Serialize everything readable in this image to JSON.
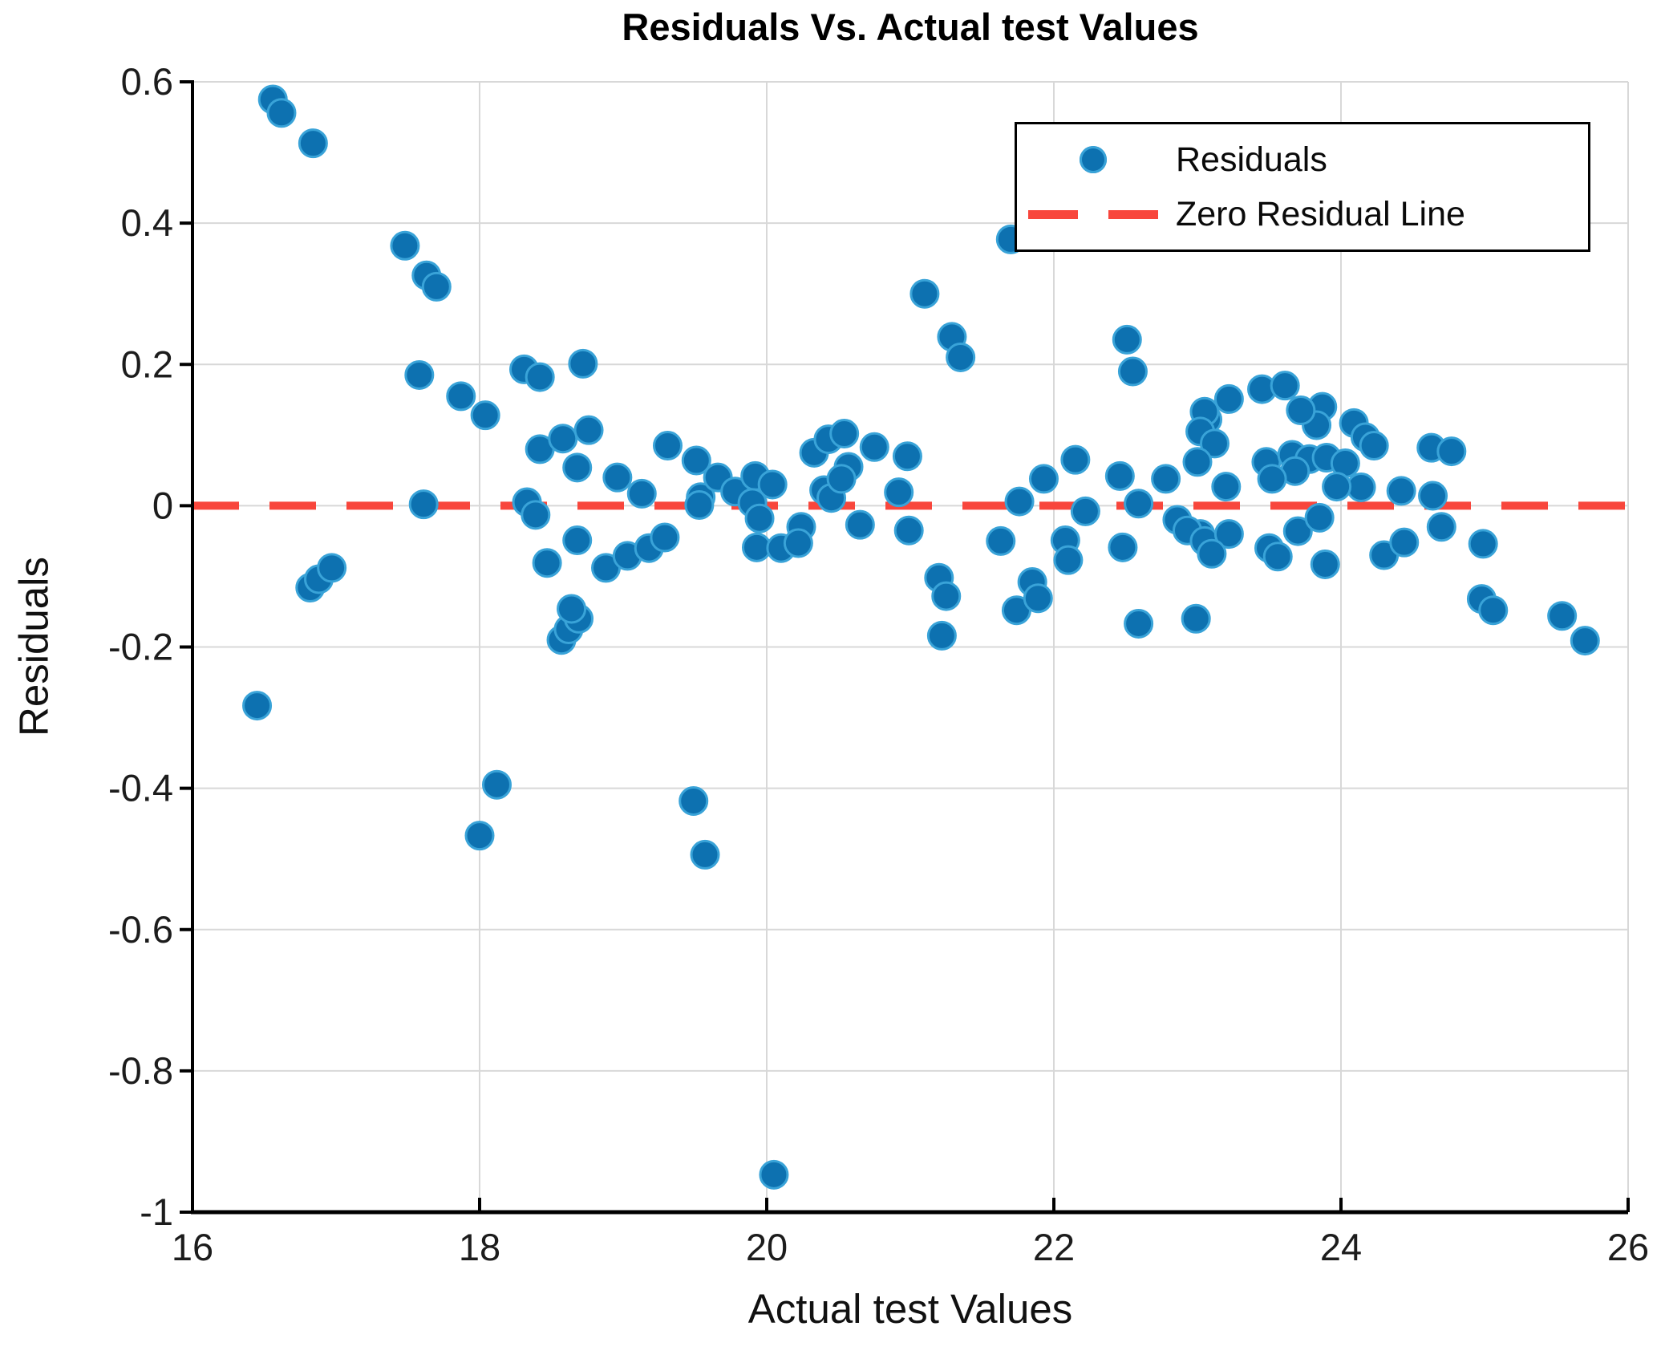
{
  "figure": {
    "title": "Residuals Vs. Actual test Values",
    "xlabel": "Actual test Values",
    "ylabel": "Residuals"
  },
  "legend": {
    "position": "top-right",
    "items": [
      {
        "label": "Residuals",
        "marker": "blue-dot"
      },
      {
        "label": "Zero Residual Line",
        "marker": "red-dashed-line"
      }
    ]
  },
  "colors": {
    "marker_fill": "#0d71b0",
    "marker_halo": "#39a3d8",
    "zero_line": "#f8463c",
    "grid": "#d8d8d8",
    "spine": "#000000",
    "tick_label": "#1c1c1c"
  },
  "chart_data": {
    "type": "scatter",
    "title": "Residuals Vs. Actual test Values",
    "xlabel": "Actual test Values",
    "ylabel": "Residuals",
    "xlim": [
      16,
      26
    ],
    "ylim": [
      -1,
      0.6
    ],
    "xticks": [
      16,
      18,
      20,
      22,
      24,
      26
    ],
    "yticks": [
      -1,
      -0.8,
      -0.6,
      -0.4,
      -0.2,
      0,
      0.2,
      0.4,
      0.6
    ],
    "xtick_labels": [
      "16",
      "18",
      "20",
      "22",
      "24",
      "26"
    ],
    "ytick_labels": [
      "-1",
      "-0.8",
      "-0.6",
      "-0.4",
      "-0.2",
      "0",
      "0.2",
      "0.4",
      "0.6"
    ],
    "grid": true,
    "legend_position": "top-right",
    "zero_line_y": 0,
    "series": [
      {
        "name": "Residuals",
        "points": [
          [
            16.56,
            0.575
          ],
          [
            16.62,
            0.556
          ],
          [
            16.84,
            0.513
          ],
          [
            16.45,
            -0.283
          ],
          [
            16.82,
            -0.116
          ],
          [
            16.88,
            -0.104
          ],
          [
            16.97,
            -0.088
          ],
          [
            17.48,
            0.368
          ],
          [
            17.63,
            0.326
          ],
          [
            17.7,
            0.31
          ],
          [
            17.58,
            0.185
          ],
          [
            17.87,
            0.155
          ],
          [
            18.04,
            0.128
          ],
          [
            17.61,
            0.002
          ],
          [
            18.0,
            -0.467
          ],
          [
            18.12,
            -0.395
          ],
          [
            18.31,
            0.193
          ],
          [
            18.42,
            0.182
          ],
          [
            18.72,
            0.201
          ],
          [
            18.42,
            0.08
          ],
          [
            18.58,
            0.095
          ],
          [
            18.76,
            0.107
          ],
          [
            18.68,
            0.054
          ],
          [
            18.96,
            0.04
          ],
          [
            19.13,
            0.017
          ],
          [
            19.31,
            0.085
          ],
          [
            19.51,
            0.064
          ],
          [
            18.33,
            0.005
          ],
          [
            18.39,
            -0.013
          ],
          [
            18.68,
            -0.049
          ],
          [
            18.47,
            -0.081
          ],
          [
            18.88,
            -0.088
          ],
          [
            19.03,
            -0.071
          ],
          [
            19.18,
            -0.06
          ],
          [
            19.29,
            -0.045
          ],
          [
            18.57,
            -0.19
          ],
          [
            18.62,
            -0.175
          ],
          [
            18.69,
            -0.16
          ],
          [
            18.64,
            -0.146
          ],
          [
            19.54,
            0.012
          ],
          [
            19.66,
            0.04
          ],
          [
            19.78,
            0.02
          ],
          [
            19.92,
            0.042
          ],
          [
            20.04,
            0.03
          ],
          [
            19.53,
            0.001
          ],
          [
            19.9,
            0.004
          ],
          [
            19.95,
            -0.018
          ],
          [
            19.93,
            -0.059
          ],
          [
            20.1,
            -0.06
          ],
          [
            20.24,
            -0.03
          ],
          [
            20.22,
            -0.053
          ],
          [
            19.49,
            -0.418
          ],
          [
            19.57,
            -0.494
          ],
          [
            20.05,
            -0.947
          ],
          [
            20.33,
            0.075
          ],
          [
            20.43,
            0.094
          ],
          [
            20.4,
            0.022
          ],
          [
            20.45,
            0.011
          ],
          [
            20.54,
            0.102
          ],
          [
            20.75,
            0.083
          ],
          [
            20.98,
            0.07
          ],
          [
            20.57,
            0.055
          ],
          [
            20.52,
            0.038
          ],
          [
            20.92,
            0.019
          ],
          [
            20.65,
            -0.027
          ],
          [
            20.99,
            -0.035
          ],
          [
            21.1,
            0.3
          ],
          [
            21.29,
            0.239
          ],
          [
            21.35,
            0.21
          ],
          [
            21.7,
            0.377
          ],
          [
            21.2,
            -0.102
          ],
          [
            21.25,
            -0.128
          ],
          [
            21.22,
            -0.184
          ],
          [
            21.63,
            -0.05
          ],
          [
            21.76,
            0.006
          ],
          [
            21.85,
            -0.108
          ],
          [
            21.74,
            -0.148
          ],
          [
            21.89,
            -0.131
          ],
          [
            21.93,
            0.038
          ],
          [
            22.15,
            0.065
          ],
          [
            22.22,
            -0.008
          ],
          [
            22.46,
            0.042
          ],
          [
            22.59,
            0.003
          ],
          [
            22.78,
            0.038
          ],
          [
            22.86,
            -0.02
          ],
          [
            22.08,
            -0.049
          ],
          [
            22.1,
            -0.077
          ],
          [
            22.48,
            -0.059
          ],
          [
            22.59,
            -0.167
          ],
          [
            22.99,
            -0.16
          ],
          [
            22.51,
            0.235
          ],
          [
            22.55,
            0.19
          ],
          [
            23.02,
            -0.04
          ],
          [
            22.93,
            -0.035
          ],
          [
            23.05,
            -0.05
          ],
          [
            23.22,
            -0.04
          ],
          [
            23.1,
            -0.068
          ],
          [
            23.07,
            0.122
          ],
          [
            23.22,
            0.151
          ],
          [
            23.45,
            0.165
          ],
          [
            23.05,
            0.133
          ],
          [
            23.02,
            0.105
          ],
          [
            23.12,
            0.088
          ],
          [
            23.0,
            0.062
          ],
          [
            23.2,
            0.027
          ],
          [
            23.61,
            0.17
          ],
          [
            23.87,
            0.14
          ],
          [
            23.83,
            0.114
          ],
          [
            23.72,
            0.135
          ],
          [
            24.09,
            0.117
          ],
          [
            24.17,
            0.097
          ],
          [
            24.23,
            0.085
          ],
          [
            23.48,
            0.062
          ],
          [
            23.66,
            0.072
          ],
          [
            23.78,
            0.066
          ],
          [
            23.9,
            0.068
          ],
          [
            24.03,
            0.06
          ],
          [
            23.68,
            0.049
          ],
          [
            23.52,
            0.038
          ],
          [
            24.14,
            0.026
          ],
          [
            23.97,
            0.027
          ],
          [
            24.42,
            0.021
          ],
          [
            23.5,
            -0.06
          ],
          [
            23.56,
            -0.072
          ],
          [
            23.7,
            -0.036
          ],
          [
            23.85,
            -0.017
          ],
          [
            23.89,
            -0.083
          ],
          [
            24.3,
            -0.07
          ],
          [
            24.44,
            -0.052
          ],
          [
            24.63,
            0.082
          ],
          [
            24.77,
            0.077
          ],
          [
            24.64,
            0.014
          ],
          [
            24.7,
            -0.03
          ],
          [
            24.99,
            -0.054
          ],
          [
            24.98,
            -0.132
          ],
          [
            25.06,
            -0.148
          ],
          [
            25.54,
            -0.156
          ],
          [
            25.7,
            -0.191
          ]
        ]
      }
    ]
  }
}
